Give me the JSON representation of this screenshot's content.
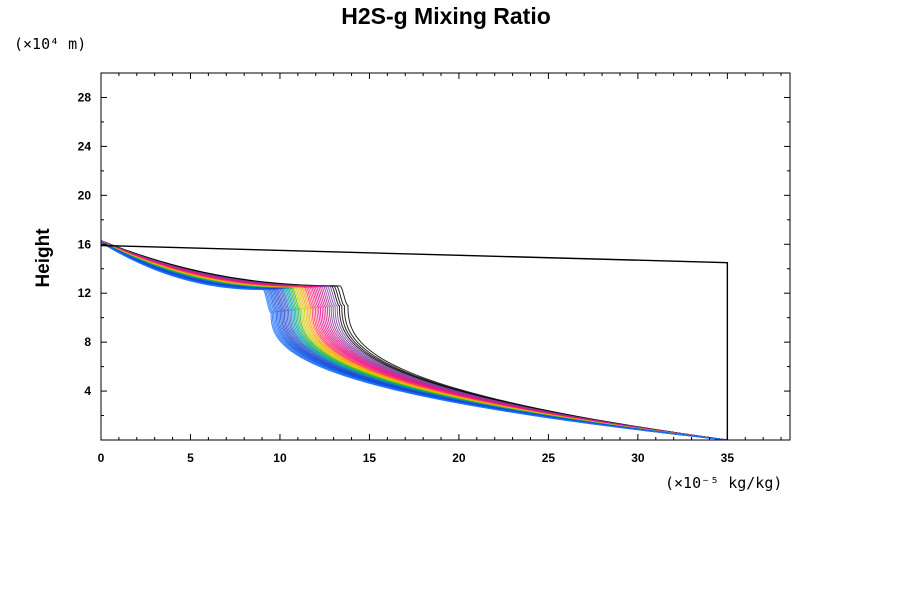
{
  "chart_data": {
    "type": "line",
    "title": "H2S-g Mixing Ratio",
    "ylabel": "Height",
    "y_unit_label": "(×10⁴ m)",
    "x_unit_label": "(×10⁻⁵ kg/kg)",
    "xlim": [
      0,
      38.5
    ],
    "ylim": [
      0,
      30
    ],
    "x_ticks": [
      0,
      5,
      10,
      15,
      20,
      25,
      30,
      35
    ],
    "y_ticks": [
      4,
      8,
      12,
      16,
      20,
      24,
      28
    ],
    "grid": false,
    "legend": "none",
    "reference_line": {
      "color": "#000000",
      "x": [
        0,
        35,
        35
      ],
      "y": [
        15.9,
        14.5,
        0
      ]
    },
    "profile_colors": [
      "#000000",
      "#7a3fa0",
      "#c81e8c",
      "#e8108a",
      "#ff3366",
      "#ff9900",
      "#d4c400",
      "#2db82d",
      "#0099aa",
      "#2255cc",
      "#1a3fd6",
      "#0a55e0",
      "#1f70ff"
    ],
    "profile_family": {
      "count": 48,
      "surface_x": 35,
      "top_height": 16.3,
      "upper_jump_x_range": [
        9.5,
        13.8
      ],
      "upper_jump_heights": [
        12.6,
        10.8
      ],
      "lower_kink_height_range": [
        10.4,
        11.0
      ]
    }
  }
}
